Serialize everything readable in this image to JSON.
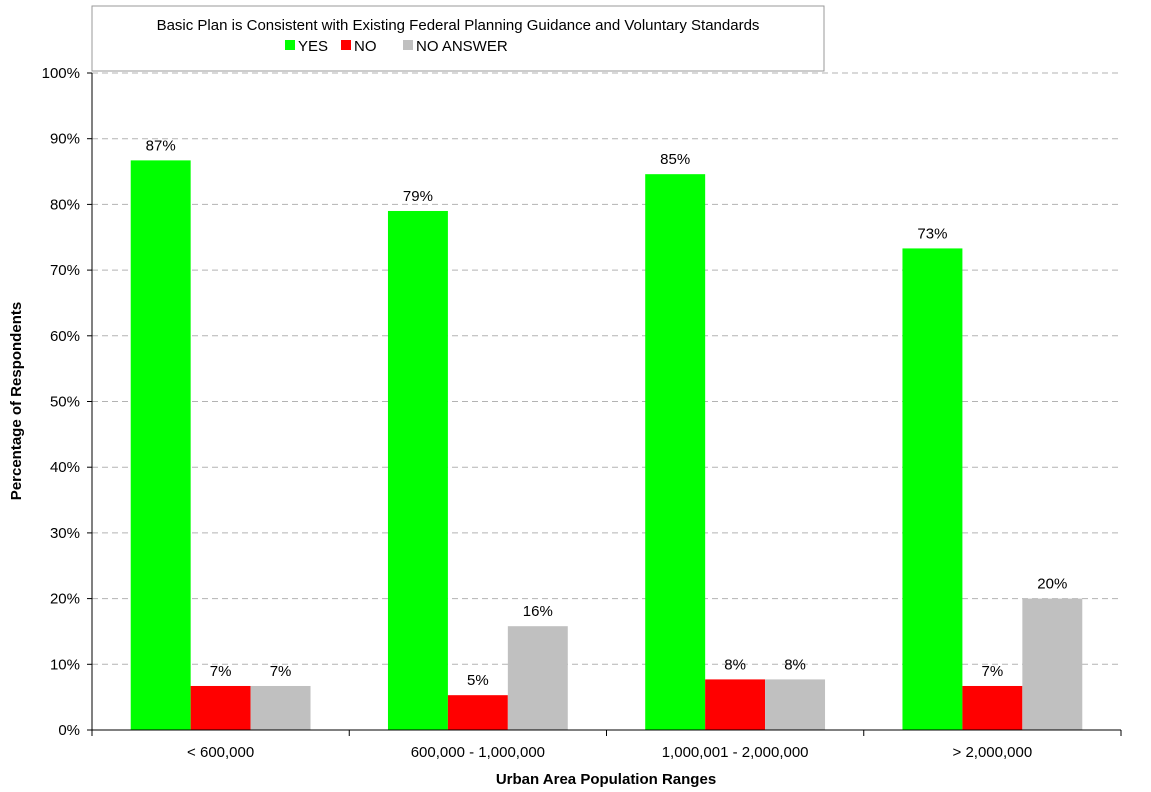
{
  "chart_data": {
    "type": "bar",
    "title": "Basic Plan is Consistent with Existing Federal Planning Guidance and Voluntary Standards",
    "xlabel": "Urban Area Population Ranges",
    "ylabel": "Percentage of Respondents",
    "categories": [
      "< 600,000",
      "600,000 - 1,000,000",
      "1,000,001 - 2,000,000",
      "> 2,000,000"
    ],
    "ylim": [
      0,
      100
    ],
    "y_ticks": [
      "0%",
      "10%",
      "20%",
      "30%",
      "40%",
      "50%",
      "60%",
      "70%",
      "80%",
      "90%",
      "100%"
    ],
    "grid": "horizontal dashed",
    "legend_position": "top",
    "series": [
      {
        "name": "YES",
        "color": "#00ff00",
        "values": [
          86.7,
          79.0,
          84.6,
          73.3
        ],
        "labels": [
          "87%",
          "79%",
          "85%",
          "73%"
        ]
      },
      {
        "name": "NO",
        "color": "#ff0000",
        "values": [
          6.7,
          5.3,
          7.7,
          6.7
        ],
        "labels": [
          "7%",
          "5%",
          "8%",
          "7%"
        ]
      },
      {
        "name": "NO ANSWER",
        "color": "#c0c0c0",
        "values": [
          6.7,
          15.8,
          7.7,
          20.0
        ],
        "labels": [
          "7%",
          "16%",
          "8%",
          "20%"
        ]
      }
    ]
  }
}
